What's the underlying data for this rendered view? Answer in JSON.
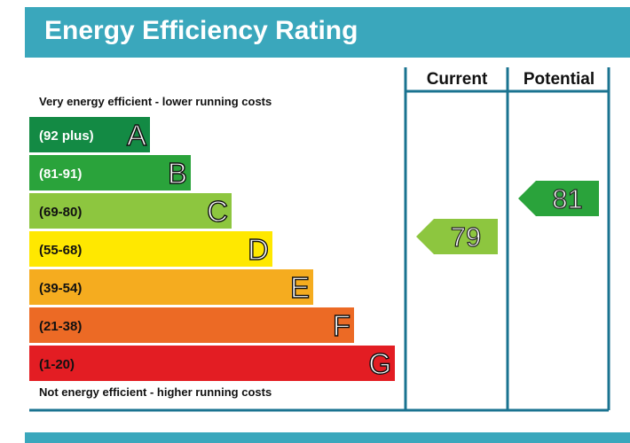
{
  "chart_data": {
    "type": "table",
    "title": "Energy Efficiency Rating",
    "top_note": "Very energy efficient - lower running costs",
    "bottom_note": "Not energy efficient - higher running costs",
    "columns": [
      "Current",
      "Potential"
    ],
    "bands": [
      {
        "range": "(92 plus)",
        "letter": "A",
        "color": "#138a44",
        "label_color": "white"
      },
      {
        "range": "(81-91)",
        "letter": "B",
        "color": "#2aa33b",
        "label_color": "white"
      },
      {
        "range": "(69-80)",
        "letter": "C",
        "color": "#8dc63f",
        "label_color": "dark"
      },
      {
        "range": "(55-68)",
        "letter": "D",
        "color": "#ffe800",
        "label_color": "dark"
      },
      {
        "range": "(39-54)",
        "letter": "E",
        "color": "#f5ac1f",
        "label_color": "dark"
      },
      {
        "range": "(21-38)",
        "letter": "F",
        "color": "#ec6a25",
        "label_color": "dark"
      },
      {
        "range": "(1-20)",
        "letter": "G",
        "color": "#e31d23",
        "label_color": "dark"
      }
    ],
    "current": {
      "value": 79,
      "band": "C",
      "color": "#8dc63f"
    },
    "potential": {
      "value": 81,
      "band": "B",
      "color": "#2aa33b"
    },
    "frame_color": "#1a7390",
    "accent_color": "#3aa7bc"
  }
}
